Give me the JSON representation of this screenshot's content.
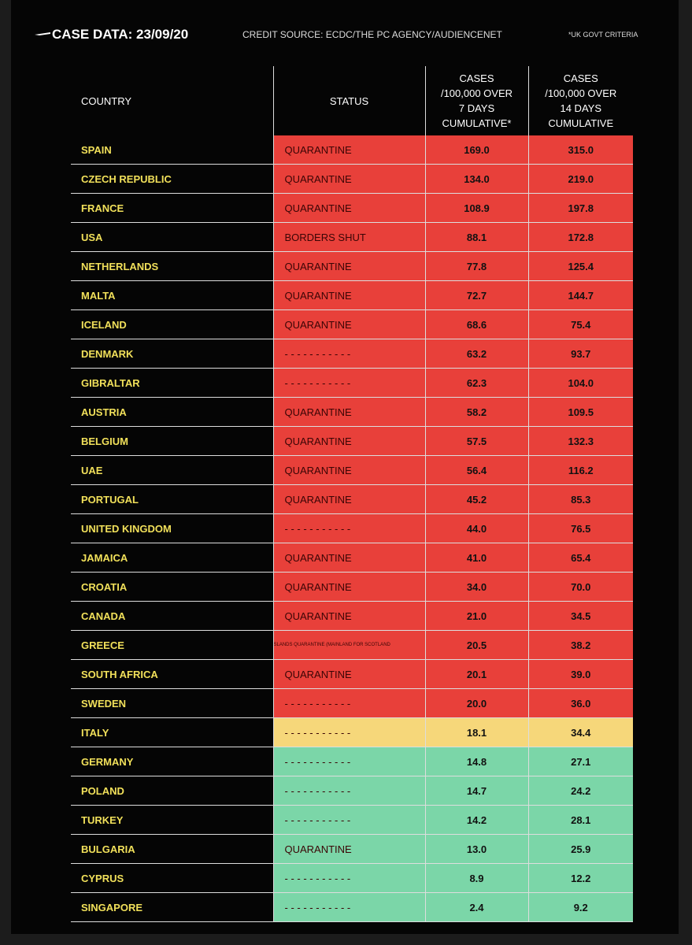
{
  "header": {
    "title": "CASE DATA: 23/09/20",
    "credit": "CREDIT SOURCE: ECDC/THE PC AGENCY/AUDIENCENET",
    "note": "*UK GOVT CRITERIA"
  },
  "table": {
    "columns": [
      "COUNTRY",
      "STATUS",
      "CASES\n/100,000 OVER\n7 DAYS\nCUMULATIVE*",
      "CASES\n/100,000 OVER\n14 DAYS\nCUMULATIVE"
    ],
    "rows": [
      {
        "country": "SPAIN",
        "status": "QUARANTINE",
        "cases_7": "169.0",
        "cases_14": "315.0",
        "color": "#e8403a"
      },
      {
        "country": "CZECH REPUBLIC",
        "status": "QUARANTINE",
        "cases_7": "134.0",
        "cases_14": "219.0",
        "color": "#e8403a"
      },
      {
        "country": "FRANCE",
        "status": "QUARANTINE",
        "cases_7": "108.9",
        "cases_14": "197.8",
        "color": "#e8403a"
      },
      {
        "country": "USA",
        "status": "BORDERS SHUT",
        "cases_7": "88.1",
        "cases_14": "172.8",
        "color": "#e8403a"
      },
      {
        "country": "NETHERLANDS",
        "status": "QUARANTINE",
        "cases_7": "77.8",
        "cases_14": "125.4",
        "color": "#e8403a"
      },
      {
        "country": "MALTA",
        "status": "QUARANTINE",
        "cases_7": "72.7",
        "cases_14": "144.7",
        "color": "#e8403a"
      },
      {
        "country": "ICELAND",
        "status": "QUARANTINE",
        "cases_7": "68.6",
        "cases_14": "75.4",
        "color": "#e8403a"
      },
      {
        "country": "DENMARK",
        "status": "- - - - - - - - - - -",
        "cases_7": "63.2",
        "cases_14": "93.7",
        "color": "#e8403a"
      },
      {
        "country": "GIBRALTAR",
        "status": "- - - - - - - - - - -",
        "cases_7": "62.3",
        "cases_14": "104.0",
        "color": "#e8403a"
      },
      {
        "country": "AUSTRIA",
        "status": "QUARANTINE",
        "cases_7": "58.2",
        "cases_14": "109.5",
        "color": "#e8403a"
      },
      {
        "country": "BELGIUM",
        "status": "QUARANTINE",
        "cases_7": "57.5",
        "cases_14": "132.3",
        "color": "#e8403a"
      },
      {
        "country": "UAE",
        "status": "QUARANTINE",
        "cases_7": "56.4",
        "cases_14": "116.2",
        "color": "#e8403a"
      },
      {
        "country": "PORTUGAL",
        "status": "QUARANTINE",
        "cases_7": "45.2",
        "cases_14": "85.3",
        "color": "#e8403a"
      },
      {
        "country": "UNITED KINGDOM",
        "status": "- - - - - - - - - - -",
        "cases_7": "44.0",
        "cases_14": "76.5",
        "color": "#e8403a"
      },
      {
        "country": "JAMAICA",
        "status": "QUARANTINE",
        "cases_7": "41.0",
        "cases_14": "65.4",
        "color": "#e8403a"
      },
      {
        "country": "CROATIA",
        "status": "QUARANTINE",
        "cases_7": "34.0",
        "cases_14": "70.0",
        "color": "#e8403a"
      },
      {
        "country": "CANADA",
        "status": "QUARANTINE",
        "cases_7": "21.0",
        "cases_14": "34.5",
        "color": "#e8403a"
      },
      {
        "country": "GREECE",
        "status": "SLANDS QUARANTINE  (MAINLAND FOR SCOTLAND",
        "cases_7": "20.5",
        "cases_14": "38.2",
        "color": "#e8403a"
      },
      {
        "country": "SOUTH AFRICA",
        "status": "QUARANTINE",
        "cases_7": "20.1",
        "cases_14": "39.0",
        "color": "#e8403a"
      },
      {
        "country": "SWEDEN",
        "status": "- - - - - - - - - - -",
        "cases_7": "20.0",
        "cases_14": "36.0",
        "color": "#e8403a"
      },
      {
        "country": "ITALY",
        "status": "- - - - - - - - - - -",
        "cases_7": "18.1",
        "cases_14": "34.4",
        "color": "#f6d77a"
      },
      {
        "country": "GERMANY",
        "status": "- - - - - - - - - - -",
        "cases_7": "14.8",
        "cases_14": "27.1",
        "color": "#7bd6a8"
      },
      {
        "country": "POLAND",
        "status": "- - - - - - - - - - -",
        "cases_7": "14.7",
        "cases_14": "24.2",
        "color": "#7bd6a8"
      },
      {
        "country": "TURKEY",
        "status": "- - - - - - - - - - -",
        "cases_7": "14.2",
        "cases_14": "28.1",
        "color": "#7bd6a8"
      },
      {
        "country": "BULGARIA",
        "status": "QUARANTINE",
        "cases_7": "13.0",
        "cases_14": "25.9",
        "color": "#7bd6a8"
      },
      {
        "country": "CYPRUS",
        "status": "- - - - - - - - - - -",
        "cases_7": "8.9",
        "cases_14": "12.2",
        "color": "#7bd6a8"
      },
      {
        "country": "SINGAPORE",
        "status": "- - - - - - - - - - -",
        "cases_7": "2.4",
        "cases_14": "9.2",
        "color": "#7bd6a8"
      }
    ]
  }
}
